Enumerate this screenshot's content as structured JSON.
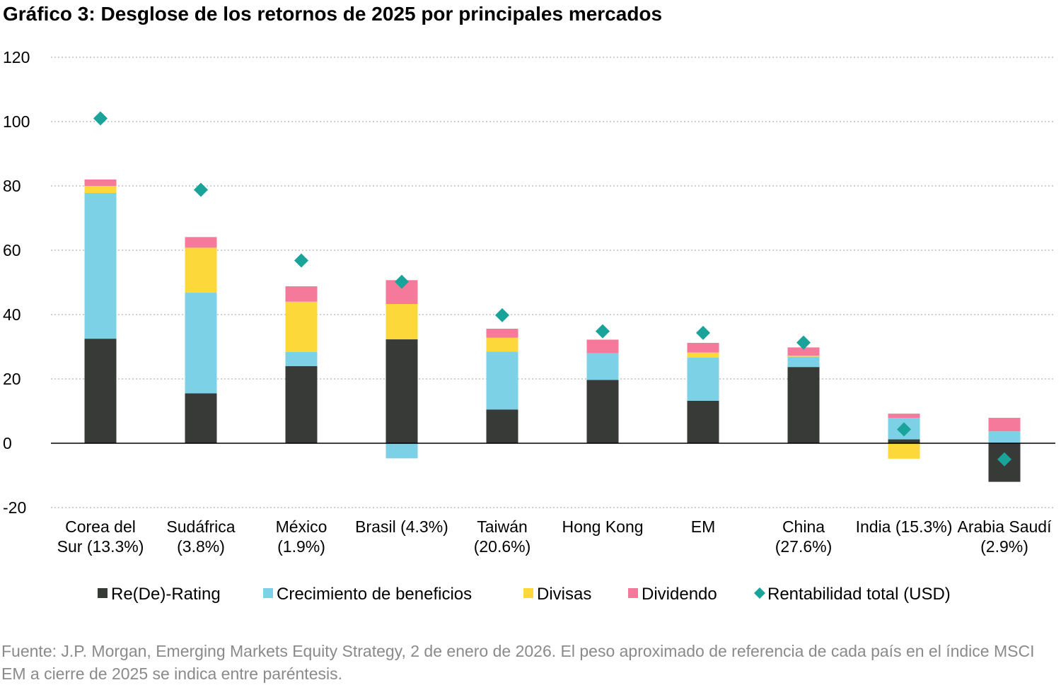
{
  "title": "Gráfico 3: Desglose de los retornos de 2025 por principales mercados",
  "footnote": "Fuente: J.P. Morgan, Emerging Markets Equity Strategy, 2 de enero de 2026. El peso aproximado de referencia de cada país en el índice MSCI EM a cierre de 2025 se indica entre paréntesis.",
  "chart_data": {
    "type": "bar",
    "stacked": true,
    "categories": [
      [
        "Corea del",
        "Sur (13.3%)"
      ],
      [
        "Sudáfrica",
        "(3.8%)"
      ],
      [
        "México",
        "(1.9%)"
      ],
      [
        "Brasil (4.3%)"
      ],
      [
        "Taiwán",
        "(20.6%)"
      ],
      [
        "Hong Kong"
      ],
      [
        "EM"
      ],
      [
        "China",
        "(27.6%)"
      ],
      [
        "India (15.3%)"
      ],
      [
        "Arabia Saudí",
        "(2.9%)"
      ]
    ],
    "ylim": [
      -20,
      120
    ],
    "yticks": [
      -20,
      0,
      20,
      40,
      60,
      80,
      100,
      120
    ],
    "grid": true,
    "legend_position": "bottom",
    "series": [
      {
        "name": "Re(De)-Rating",
        "color": "#383a38",
        "values": [
          32.5,
          15.5,
          24,
          32.3,
          10.5,
          19.7,
          13.2,
          23.7,
          1.2,
          -12
        ]
      },
      {
        "name": "Crecimiento de beneficios",
        "color": "#7dd1e6",
        "values": [
          45.3,
          31.3,
          4.4,
          -4.7,
          18,
          8.3,
          13.4,
          3.2,
          6.7,
          3.7
        ]
      },
      {
        "name": "Divisas",
        "color": "#fdd83a",
        "values": [
          2.2,
          14,
          15.6,
          11,
          4.3,
          0,
          1.6,
          0.3,
          -4.8,
          0
        ]
      },
      {
        "name": "Dividendo",
        "color": "#f5799b",
        "values": [
          2,
          3.3,
          4.8,
          7.4,
          2.8,
          4.2,
          3,
          2.6,
          1.3,
          4.2
        ]
      }
    ],
    "markers": {
      "name": "Rentabilidad total (USD)",
      "color": "#1aa39a",
      "values": [
        101,
        78.8,
        56.8,
        50.2,
        39.8,
        34.8,
        34.3,
        31.3,
        4.3,
        -5
      ]
    }
  }
}
